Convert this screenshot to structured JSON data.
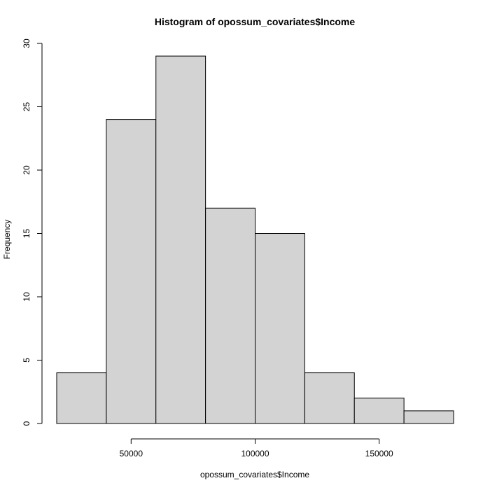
{
  "chart_data": {
    "type": "bar",
    "title": "Histogram of opossum_covariates$Income",
    "xlabel": "opossum_covariates$Income",
    "ylabel": "Frequency",
    "bins": [
      {
        "start": 20000,
        "end": 40000,
        "count": 4
      },
      {
        "start": 40000,
        "end": 60000,
        "count": 24
      },
      {
        "start": 60000,
        "end": 80000,
        "count": 29
      },
      {
        "start": 80000,
        "end": 100000,
        "count": 17
      },
      {
        "start": 100000,
        "end": 120000,
        "count": 15
      },
      {
        "start": 120000,
        "end": 140000,
        "count": 4
      },
      {
        "start": 140000,
        "end": 160000,
        "count": 2
      },
      {
        "start": 160000,
        "end": 180000,
        "count": 1
      }
    ],
    "xlim": [
      20000,
      180000
    ],
    "ylim": [
      0,
      30
    ],
    "x_ticks": [
      50000,
      100000,
      150000
    ],
    "y_ticks": [
      0,
      5,
      10,
      15,
      20,
      25,
      30
    ],
    "x_tick_labels": [
      "50000",
      "100000",
      "150000"
    ],
    "y_tick_labels": [
      "0",
      "5",
      "10",
      "15",
      "20",
      "25",
      "30"
    ],
    "grid": false,
    "colors": {
      "bar_fill": "#d3d3d3",
      "bar_stroke": "#000000"
    }
  }
}
